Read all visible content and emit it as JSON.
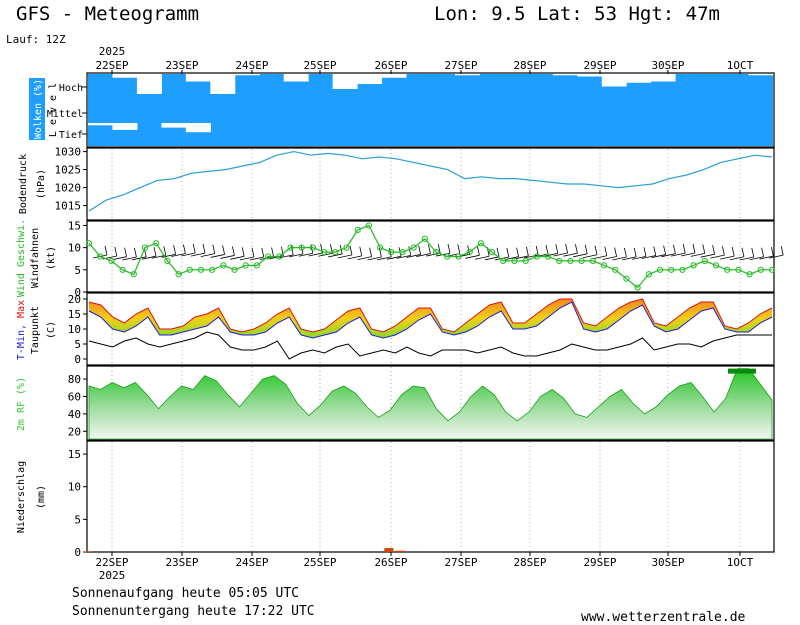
{
  "header": {
    "title": "GFS - Meteogramm",
    "location": "Lon: 9.5 Lat: 53 Hgt: 47m",
    "run": "Lauf: 12Z"
  },
  "footer": {
    "sunrise": "Sonnenaufgang heute 05:05 UTC",
    "sunset": "Sonnenuntergang heute 17:22 UTC",
    "website": "www.wetterzentrale.de"
  },
  "colors": {
    "cloud_blue": "#1e9fff",
    "pressure_line": "#2a9fd6",
    "wind_green": "#22bb22",
    "temp_min": "#1b1bdd",
    "temp_max": "#dd1111",
    "rh_green": "#33cc33",
    "precip": "#cc4400"
  },
  "chart_data": [
    {
      "type": "heatmap",
      "ylabel": "Wolken (%)",
      "ylabel2": "L e v e l",
      "levels": [
        "Hoch",
        "Mittel",
        "Tief"
      ],
      "x_labels": [
        "22SEP",
        "23SEP",
        "24SEP",
        "25SEP",
        "26SEP",
        "27SEP",
        "28SEP",
        "29SEP",
        "30SEP",
        "1OCT"
      ],
      "year_label": "2025",
      "values": {
        "Hoch": [
          100,
          85,
          20,
          100,
          70,
          20,
          95,
          100,
          70,
          100,
          40,
          60,
          85,
          100,
          100,
          95,
          100,
          100,
          100,
          95,
          90,
          50,
          65,
          70,
          100,
          100,
          100,
          95
        ],
        "Mittel": [
          100,
          100,
          100,
          100,
          100,
          100,
          100,
          100,
          100,
          100,
          100,
          100,
          100,
          100,
          100,
          100,
          100,
          100,
          100,
          100,
          100,
          100,
          100,
          100,
          100,
          100,
          100,
          100
        ],
        "Tief": [
          90,
          70,
          100,
          80,
          60,
          100,
          100,
          100,
          100,
          100,
          100,
          100,
          100,
          100,
          100,
          100,
          100,
          100,
          100,
          100,
          100,
          100,
          100,
          100,
          100,
          100,
          100,
          100
        ]
      }
    },
    {
      "type": "line",
      "ylabel": "Bodendruck",
      "unit": "(hPa)",
      "ylim": [
        1011,
        1031
      ],
      "yticks": [
        1015,
        1020,
        1025,
        1030
      ],
      "series": [
        {
          "values": [
            1013.5,
            1016.5,
            1018,
            1020,
            1022,
            1022.5,
            1024,
            1024.5,
            1025,
            1026,
            1027,
            1029,
            1030,
            1029,
            1029.5,
            1029,
            1028,
            1028.5,
            1028,
            1027,
            1026,
            1025,
            1022.5,
            1023,
            1022.5,
            1022.5,
            1022,
            1021.5,
            1021,
            1021,
            1020.5,
            1020,
            1020.5,
            1021,
            1022.5,
            1023.5,
            1025,
            1027,
            1028,
            1029,
            1028.5
          ]
        }
      ]
    },
    {
      "type": "line",
      "ylabel": "Wind Geschwi.",
      "ylabel2": "Windfahnen",
      "unit": "(kt)",
      "ylim": [
        0,
        16
      ],
      "yticks": [
        0,
        5,
        10,
        15
      ],
      "series": [
        {
          "values": [
            11,
            8,
            7,
            5,
            4,
            10,
            11,
            7,
            4,
            5,
            5,
            5,
            6,
            5,
            6,
            6,
            8,
            8,
            10,
            10,
            10,
            9,
            9,
            10,
            14,
            15,
            10,
            9,
            9,
            10,
            12,
            9,
            8,
            8,
            9,
            11,
            9,
            7,
            7,
            7,
            8,
            8,
            7,
            7,
            7,
            7,
            6,
            5,
            3,
            1,
            4,
            5,
            5,
            5,
            6,
            7,
            6,
            5,
            5,
            4,
            5,
            5
          ]
        }
      ]
    },
    {
      "type": "area",
      "ylabel": "T-Min, Max",
      "ylabel2": "Taupunkt",
      "unit": "(C)",
      "ylim": [
        -2,
        22
      ],
      "yticks": [
        0,
        5,
        10,
        15,
        20
      ],
      "series": [
        {
          "name": "T-Min",
          "values": [
            16,
            14,
            10,
            9,
            11,
            14,
            8,
            8,
            9,
            10,
            11,
            14,
            9,
            8,
            8,
            9,
            12,
            14,
            8,
            7,
            8,
            9,
            12,
            14,
            8,
            7,
            8,
            10,
            13,
            15,
            9,
            8,
            9,
            11,
            14,
            16,
            10,
            10,
            11,
            14,
            17,
            19,
            10,
            9,
            10,
            13,
            16,
            18,
            11,
            9,
            10,
            13,
            16,
            17,
            10,
            9,
            9,
            12,
            14
          ]
        },
        {
          "name": "Max",
          "values": [
            19,
            18,
            14,
            12,
            15,
            17,
            10,
            10,
            11,
            14,
            15,
            17,
            10,
            9,
            10,
            12,
            15,
            17,
            10,
            9,
            10,
            13,
            16,
            17,
            10,
            9,
            11,
            14,
            17,
            17,
            10,
            9,
            12,
            15,
            18,
            19,
            12,
            12,
            15,
            18,
            20,
            20,
            12,
            11,
            14,
            17,
            19,
            20,
            12,
            11,
            14,
            17,
            19,
            19,
            11,
            10,
            12,
            15,
            17
          ]
        },
        {
          "name": "Taupunkt",
          "values": [
            6,
            5,
            4,
            6,
            7,
            5,
            4,
            5,
            6,
            7,
            9,
            8,
            4,
            3,
            3,
            4,
            6,
            0,
            2,
            3,
            2,
            4,
            5,
            1,
            2,
            3,
            2,
            4,
            2,
            1,
            3,
            3,
            3,
            2,
            3,
            4,
            2,
            1,
            1,
            2,
            3,
            5,
            4,
            3,
            3,
            4,
            5,
            7,
            3,
            4,
            5,
            5,
            4,
            6,
            7,
            8,
            8,
            8,
            8
          ]
        }
      ]
    },
    {
      "type": "area",
      "ylabel": "2m RF (%)",
      "ylim": [
        10,
        95
      ],
      "yticks": [
        20,
        40,
        60,
        80
      ],
      "series": [
        {
          "values": [
            72,
            68,
            76,
            70,
            76,
            62,
            46,
            60,
            72,
            68,
            84,
            78,
            62,
            48,
            64,
            80,
            84,
            74,
            52,
            38,
            50,
            66,
            72,
            64,
            48,
            36,
            44,
            62,
            72,
            70,
            46,
            32,
            42,
            60,
            72,
            62,
            42,
            32,
            42,
            60,
            68,
            58,
            40,
            36,
            48,
            60,
            68,
            52,
            40,
            48,
            62,
            72,
            76,
            60,
            42,
            58,
            92,
            92,
            74,
            56
          ]
        }
      ]
    },
    {
      "type": "bar",
      "ylabel": "Niederschlag",
      "unit": "(mm)",
      "ylim": [
        0,
        17
      ],
      "yticks": [
        0,
        5,
        10,
        15
      ],
      "series": [
        {
          "values": [
            0.1,
            0,
            0,
            0,
            0,
            0,
            0,
            0,
            0,
            0,
            0,
            0,
            0,
            0,
            0,
            0,
            0,
            0,
            0,
            0,
            0,
            0,
            0,
            0,
            0,
            0,
            0.6,
            0.2,
            0,
            0,
            0,
            0,
            0,
            0,
            0,
            0,
            0,
            0,
            0,
            0,
            0,
            0,
            0,
            0,
            0,
            0,
            0,
            0,
            0,
            0,
            0,
            0,
            0,
            0,
            0,
            0,
            0,
            0,
            0,
            0
          ]
        }
      ]
    }
  ]
}
